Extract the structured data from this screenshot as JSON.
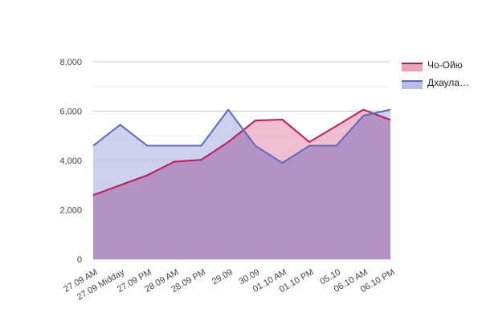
{
  "chart_data": {
    "type": "area",
    "title": "",
    "xlabel": "",
    "ylabel": "",
    "categories": [
      "27.09 AM",
      "27.09 Midday",
      "27.09 PM",
      "28.09 AM",
      "28.09 PM",
      "29.09",
      "30.09",
      "01.10 AM",
      "01.10 PM",
      "05.10",
      "06.10 AM",
      "06.10 PM"
    ],
    "ylim": [
      0,
      8000
    ],
    "yticks": [
      0,
      2000,
      4000,
      6000,
      8000
    ],
    "ytick_labels": [
      "0",
      "2,000",
      "4,000",
      "6,000",
      "8,000"
    ],
    "grid": true,
    "legend_position": "right",
    "series": [
      {
        "name": "Чо-Ойю",
        "color": "#c2185b",
        "fill": "#e8a3bd",
        "values": [
          2600,
          3000,
          3400,
          3950,
          4030,
          4750,
          5620,
          5660,
          4750,
          5400,
          6060,
          5650
        ]
      },
      {
        "name": "Дхаула…",
        "color": "#5c6bc0",
        "fill": "#b8bde6",
        "values": [
          4600,
          5450,
          4600,
          4600,
          4600,
          6060,
          4600,
          3900,
          4600,
          4600,
          5820,
          6060
        ]
      }
    ]
  }
}
